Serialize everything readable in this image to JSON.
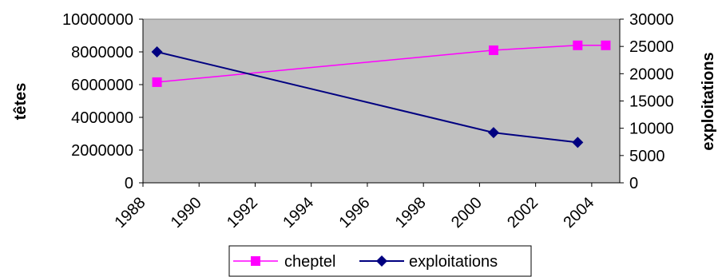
{
  "chart_data": {
    "type": "line",
    "x_ticks": [
      "1988",
      "1990",
      "1992",
      "1994",
      "1996",
      "1998",
      "2000",
      "2002",
      "2004"
    ],
    "xlim": [
      1988,
      2005
    ],
    "y_left": {
      "label": "têtes",
      "ylim": [
        0,
        10000000
      ],
      "ticks": [
        "0",
        "2000000",
        "4000000",
        "6000000",
        "8000000",
        "10000000"
      ]
    },
    "y_right": {
      "label": "exploitations",
      "ylim": [
        0,
        30000
      ],
      "ticks": [
        "0",
        "5000",
        "10000",
        "15000",
        "20000",
        "25000",
        "30000"
      ]
    },
    "grid": false,
    "plot_background": "#c0c0c0",
    "legend_position": "bottom",
    "series": [
      {
        "name": "cheptel",
        "axis": "left",
        "color": "#ff00ff",
        "marker": "square",
        "x": [
          1988.5,
          2000.5,
          2003.5,
          2004.5
        ],
        "y": [
          6150000,
          8100000,
          8400000,
          8400000
        ]
      },
      {
        "name": "exploitations",
        "axis": "right",
        "color": "#000080",
        "marker": "diamond",
        "x": [
          1988.5,
          2000.5,
          2003.5
        ],
        "y": [
          24000,
          9200,
          7400
        ]
      }
    ]
  }
}
